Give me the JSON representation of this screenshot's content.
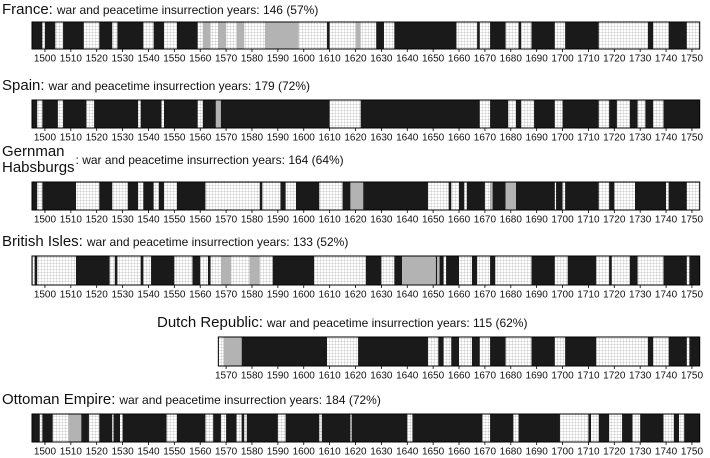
{
  "chart_data": [
    {
      "type": "timeline",
      "title_lines": [
        "France:"
      ],
      "subtitle": "war and peacetime insurrection years: 146 (57%)",
      "xlim": [
        1495,
        1753
      ],
      "xticks": [
        1500,
        1510,
        1520,
        1530,
        1540,
        1550,
        1560,
        1570,
        1580,
        1590,
        1600,
        1610,
        1620,
        1630,
        1640,
        1650,
        1660,
        1670,
        1680,
        1690,
        1700,
        1710,
        1720,
        1730,
        1740,
        1750
      ],
      "war": [
        [
          1495,
          1499
        ],
        [
          1500,
          1504
        ],
        [
          1507,
          1515
        ],
        [
          1521,
          1526
        ],
        [
          1528,
          1538
        ],
        [
          1542,
          1546
        ],
        [
          1551,
          1559
        ],
        [
          1562,
          1563
        ],
        [
          1567,
          1568
        ],
        [
          1586,
          1588
        ],
        [
          1589,
          1598
        ],
        [
          1609,
          1610
        ],
        [
          1628,
          1631
        ],
        [
          1635,
          1659
        ],
        [
          1667,
          1668
        ],
        [
          1672,
          1678
        ],
        [
          1683,
          1684
        ],
        [
          1688,
          1697
        ],
        [
          1701,
          1714
        ],
        [
          1733,
          1735
        ],
        [
          1741,
          1748
        ]
      ],
      "insurrection": [
        [
          1561,
          1564
        ],
        [
          1567,
          1570
        ],
        [
          1574,
          1577
        ],
        [
          1585,
          1598
        ],
        [
          1620,
          1622
        ]
      ]
    },
    {
      "type": "timeline",
      "title_lines": [
        "Spain:"
      ],
      "subtitle": "war and peacetime insurrection years: 179 (72%)",
      "xlim": [
        1495,
        1753
      ],
      "xticks": [
        1500,
        1510,
        1520,
        1530,
        1540,
        1550,
        1560,
        1570,
        1580,
        1590,
        1600,
        1610,
        1620,
        1630,
        1640,
        1650,
        1660,
        1670,
        1680,
        1690,
        1700,
        1710,
        1720,
        1730,
        1740,
        1750
      ],
      "war": [
        [
          1495,
          1497
        ],
        [
          1499,
          1505
        ],
        [
          1507,
          1516
        ],
        [
          1519,
          1536
        ],
        [
          1537,
          1545
        ],
        [
          1546,
          1559
        ],
        [
          1561,
          1610
        ],
        [
          1622,
          1668
        ],
        [
          1672,
          1679
        ],
        [
          1682,
          1684
        ],
        [
          1689,
          1697
        ],
        [
          1700,
          1714
        ],
        [
          1718,
          1721
        ],
        [
          1726,
          1729
        ],
        [
          1732,
          1735
        ],
        [
          1739,
          1753
        ]
      ],
      "insurrection": [
        [
          1566,
          1568
        ]
      ]
    },
    {
      "type": "timeline",
      "title_lines": [
        "Gernman",
        "Habsburgs"
      ],
      "subtitle": ": war and peacetime insurrection years: 164 (64%)",
      "xlim": [
        1495,
        1753
      ],
      "xticks": [
        1500,
        1510,
        1520,
        1530,
        1540,
        1550,
        1560,
        1570,
        1580,
        1590,
        1600,
        1610,
        1620,
        1630,
        1640,
        1650,
        1660,
        1670,
        1680,
        1690,
        1700,
        1710,
        1720,
        1730,
        1740,
        1750
      ],
      "war": [
        [
          1495,
          1497
        ],
        [
          1499,
          1512
        ],
        [
          1521,
          1526
        ],
        [
          1532,
          1536
        ],
        [
          1538,
          1542
        ],
        [
          1544,
          1546
        ],
        [
          1551,
          1562
        ],
        [
          1583,
          1584
        ],
        [
          1591,
          1593
        ],
        [
          1597,
          1606
        ],
        [
          1615,
          1619
        ],
        [
          1621,
          1648
        ],
        [
          1656,
          1657
        ],
        [
          1660,
          1662
        ],
        [
          1663,
          1670
        ],
        [
          1672,
          1678
        ],
        [
          1682,
          1697
        ],
        [
          1697.5,
          1700
        ],
        [
          1701,
          1714
        ],
        [
          1718,
          1720
        ],
        [
          1728,
          1740
        ],
        [
          1741,
          1748
        ]
      ],
      "insurrection": [
        [
          1618,
          1623
        ],
        [
          1672,
          1673
        ],
        [
          1678,
          1682
        ]
      ]
    },
    {
      "type": "timeline",
      "title_lines": [
        "British Isles:"
      ],
      "subtitle": "war and peacetime insurrection years: 133 (52%)",
      "xlim": [
        1495,
        1753
      ],
      "xticks": [
        1500,
        1510,
        1520,
        1530,
        1540,
        1550,
        1560,
        1570,
        1580,
        1590,
        1600,
        1610,
        1620,
        1630,
        1640,
        1650,
        1660,
        1670,
        1680,
        1690,
        1700,
        1710,
        1720,
        1730,
        1740,
        1750
      ],
      "war": [
        [
          1496,
          1497
        ],
        [
          1512,
          1525
        ],
        [
          1527,
          1528
        ],
        [
          1537,
          1538
        ],
        [
          1541,
          1550
        ],
        [
          1557,
          1560
        ],
        [
          1563,
          1564
        ],
        [
          1588,
          1604
        ],
        [
          1624,
          1630
        ],
        [
          1635,
          1638
        ],
        [
          1651,
          1654
        ],
        [
          1655,
          1660
        ],
        [
          1665,
          1667
        ],
        [
          1672,
          1674
        ],
        [
          1688,
          1697
        ],
        [
          1702,
          1713
        ],
        [
          1718,
          1719
        ],
        [
          1726,
          1729
        ],
        [
          1739,
          1748
        ],
        [
          1749,
          1753
        ]
      ],
      "insurrection": [
        [
          1568,
          1572
        ],
        [
          1579,
          1583
        ],
        [
          1638,
          1651
        ],
        [
          1651.5,
          1652.5
        ]
      ]
    },
    {
      "type": "timeline",
      "title_lines": [
        "Dutch Republic:"
      ],
      "subtitle": "war and peacetime insurrection years: 115 (62%)",
      "xlim": [
        1567,
        1753
      ],
      "xticks": [
        1570,
        1580,
        1590,
        1600,
        1610,
        1620,
        1630,
        1640,
        1650,
        1660,
        1670,
        1680,
        1690,
        1700,
        1710,
        1720,
        1730,
        1740,
        1750
      ],
      "war": [
        [
          1576,
          1609
        ],
        [
          1621,
          1648
        ],
        [
          1652,
          1654
        ],
        [
          1657,
          1660
        ],
        [
          1665,
          1668
        ],
        [
          1672,
          1678
        ],
        [
          1688,
          1697
        ],
        [
          1701,
          1713
        ],
        [
          1733,
          1735
        ],
        [
          1741,
          1748
        ],
        [
          1749,
          1753
        ]
      ],
      "insurrection": [
        [
          1569,
          1576
        ]
      ]
    },
    {
      "type": "timeline",
      "title_lines": [
        "Ottoman Empire:"
      ],
      "subtitle": "war and peacetime insurrection years: 184 (72%)",
      "xlim": [
        1495,
        1753
      ],
      "xticks": [
        1500,
        1510,
        1520,
        1530,
        1540,
        1550,
        1560,
        1570,
        1580,
        1590,
        1600,
        1610,
        1620,
        1630,
        1640,
        1650,
        1660,
        1670,
        1680,
        1690,
        1700,
        1710,
        1720,
        1730,
        1740,
        1750
      ],
      "war": [
        [
          1495,
          1498
        ],
        [
          1499,
          1503
        ],
        [
          1514,
          1517
        ],
        [
          1521,
          1526
        ],
        [
          1526.5,
          1529
        ],
        [
          1530,
          1547
        ],
        [
          1551,
          1562
        ],
        [
          1565,
          1568
        ],
        [
          1570,
          1574
        ],
        [
          1576,
          1577
        ],
        [
          1578,
          1590
        ],
        [
          1593,
          1606
        ],
        [
          1607,
          1618
        ],
        [
          1618.5,
          1640
        ],
        [
          1642,
          1669
        ],
        [
          1672,
          1681
        ],
        [
          1683,
          1699
        ],
        [
          1710,
          1711
        ],
        [
          1714,
          1718
        ],
        [
          1723,
          1727
        ],
        [
          1730,
          1739
        ],
        [
          1743,
          1745
        ],
        [
          1747,
          1753
        ]
      ],
      "insurrection": [
        [
          1509,
          1514
        ]
      ]
    }
  ]
}
